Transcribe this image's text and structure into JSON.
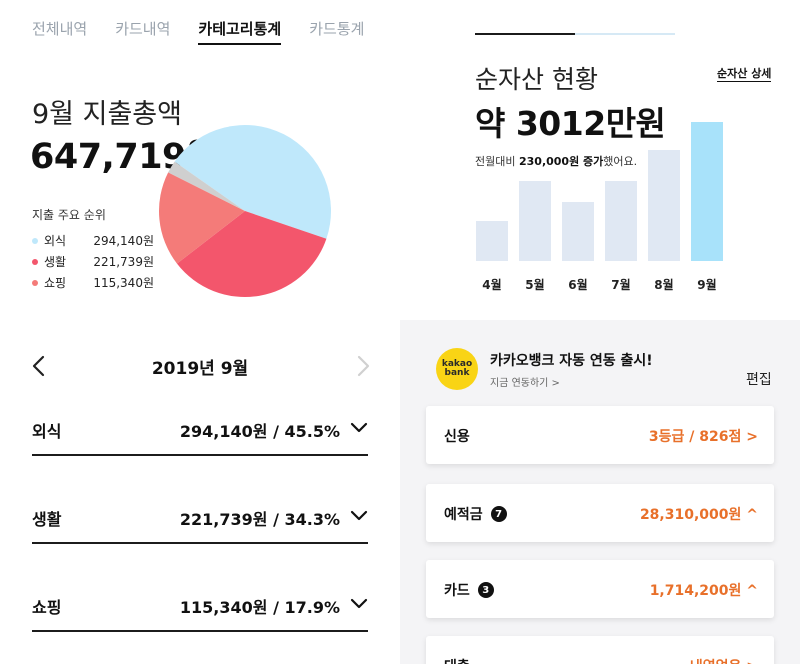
{
  "stats": {
    "tabs": [
      {
        "label": "전체내역"
      },
      {
        "label": "카드내역"
      },
      {
        "label": "카테고리통계"
      },
      {
        "label": "카드통계"
      }
    ],
    "month_label": "9월 지출총액",
    "total": "647,719원",
    "rank_title": "지출 주요 순위",
    "legend": [
      {
        "name": "외식",
        "value": "294,140원",
        "color": "#bfe8fb"
      },
      {
        "name": "생활",
        "value": "221,739원",
        "color": "#f3566c"
      },
      {
        "name": "쇼핑",
        "value": "115,340원",
        "color": "#f47b79"
      }
    ]
  },
  "chart_data": {
    "type": "pie",
    "slices": [
      {
        "name": "외식",
        "value": 45.5,
        "color": "#bfe8fb"
      },
      {
        "name": "생활",
        "value": 34.3,
        "color": "#f3566c"
      },
      {
        "name": "쇼핑",
        "value": 17.9,
        "color": "#f47b79"
      },
      {
        "name": "",
        "value": 2.3,
        "color": "#cfcfcf"
      }
    ],
    "title": "",
    "legend": "left"
  },
  "assets": {
    "progress": 0.5,
    "title": "순자산 현황",
    "detail_link": "순자산 상세",
    "amount": "약 3012만원",
    "sub_prefix": "전월대비 ",
    "sub_bold": "230,000원 증가",
    "sub_suffix": "했어요.",
    "bar_chart": {
      "type": "bar",
      "categories": [
        "4월",
        "5월",
        "6월",
        "7월",
        "8월",
        "9월"
      ],
      "values": [
        40,
        80,
        59,
        80,
        111,
        139
      ],
      "highlight_index": 5,
      "color": "#e0e8f3",
      "highlight_color": "#a8e2fa"
    }
  },
  "detail": {
    "month_title": "2019년 9월",
    "rows": [
      {
        "name": "외식",
        "value": "294,140원 / 45.5%"
      },
      {
        "name": "생활",
        "value": "221,739원 / 34.3%"
      },
      {
        "name": "쇼핑",
        "value": "115,340원 / 17.9%"
      }
    ]
  },
  "accounts": {
    "kakao_logo_top": "kakao",
    "kakao_logo_bottom": "bank",
    "kakao_title": "카카오뱅크 자동 연동 출시!",
    "kakao_sub": "지금 연동하기 >",
    "edit": "편집",
    "accent_color": "#e8702a",
    "cards": [
      {
        "name": "신용",
        "badge": "",
        "value": "3등급 / 826점 >"
      },
      {
        "name": "예적금",
        "badge": "7",
        "value": "28,310,000원 ^"
      },
      {
        "name": "카드",
        "badge": "3",
        "value": "1,714,200원 ^"
      },
      {
        "name": "대출",
        "badge": "",
        "value": "내역없음 >"
      }
    ]
  }
}
